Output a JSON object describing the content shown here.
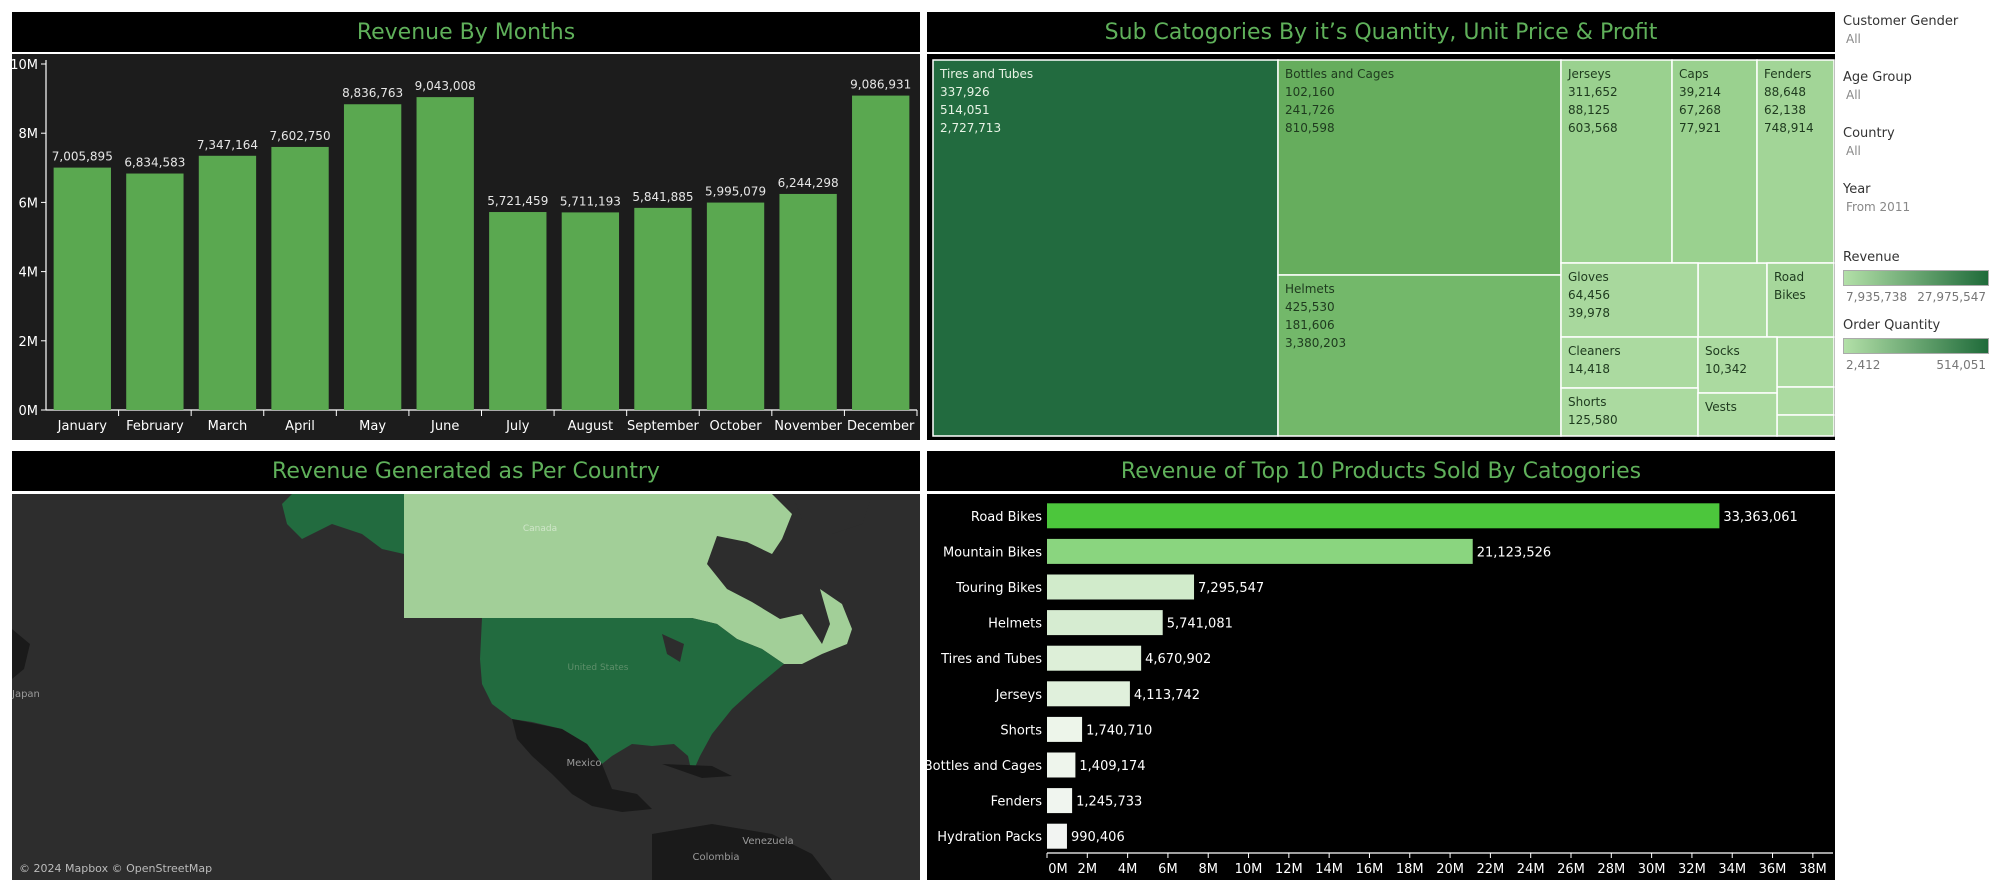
{
  "panels": {
    "months_title": "Revenue By Months",
    "treemap_title": "Sub Catogories By it’s Quantity, Unit Price & Profit",
    "map_title": "Revenue Generated as Per Country",
    "top10_title": "Revenue of Top 10 Products Sold By Catogories"
  },
  "filters": {
    "gender_label": "Customer Gender",
    "gender_value": "All",
    "age_label": "Age Group",
    "age_value": "All",
    "country_label": "Country",
    "country_value": "All",
    "year_label": "Year",
    "year_value": "From 2011",
    "revenue_legend_label": "Revenue",
    "revenue_min": "7,935,738",
    "revenue_max": "27,975,547",
    "qty_legend_label": "Order Quantity",
    "qty_min": "2,412",
    "qty_max": "514,051"
  },
  "map": {
    "attribution": "© 2024 Mapbox © OpenStreetMap",
    "labels": [
      "Canada",
      "United States",
      "Mexico",
      "Japan",
      "Venezuela",
      "Colombia"
    ]
  },
  "chart_data": [
    {
      "type": "bar",
      "title": "Revenue By Months",
      "categories": [
        "January",
        "February",
        "March",
        "April",
        "May",
        "June",
        "July",
        "August",
        "September",
        "October",
        "November",
        "December"
      ],
      "values": [
        7005895,
        6834583,
        7347164,
        7602750,
        8836763,
        9043008,
        5721459,
        5711193,
        5841885,
        5995079,
        6244298,
        9086931
      ],
      "value_labels": [
        "7,005,895",
        "6,834,583",
        "7,347,164",
        "7,602,750",
        "8,836,763",
        "9,043,008",
        "5,721,459",
        "5,711,193",
        "5,841,885",
        "5,995,079",
        "6,244,298",
        "9,086,931"
      ],
      "ylim": [
        0,
        10000000
      ],
      "yticks": [
        "0M",
        "2M",
        "4M",
        "6M",
        "8M",
        "10M"
      ],
      "color": "#5aa850"
    },
    {
      "type": "treemap",
      "title": "Sub Catogories By it’s Quantity, Unit Price & Profit",
      "nodes": [
        {
          "name": "Tires and Tubes",
          "lines": [
            "337,926",
            "514,051",
            "2,727,713"
          ],
          "color": "#226b3f"
        },
        {
          "name": "Bottles and Cages",
          "lines": [
            "102,160",
            "241,726",
            "810,598"
          ],
          "color": "#66ad5d"
        },
        {
          "name": "Helmets",
          "lines": [
            "425,530",
            "181,606",
            "3,380,203"
          ],
          "color": "#73b86a"
        },
        {
          "name": "Jerseys",
          "lines": [
            "311,652",
            "88,125",
            "603,568"
          ],
          "color": "#9ad18f"
        },
        {
          "name": "Caps",
          "lines": [
            "39,214",
            "67,268",
            "77,921"
          ],
          "color": "#9ad18f"
        },
        {
          "name": "Fenders",
          "lines": [
            "88,648",
            "62,138",
            "748,914"
          ],
          "color": "#a2d597"
        },
        {
          "name": "Gloves",
          "lines": [
            "64,456",
            "39,978"
          ],
          "color": "#a8d89d"
        },
        {
          "name": "Road Bikes",
          "lines": [],
          "color": "#a6d79b"
        },
        {
          "name": "Cleaners",
          "lines": [
            "14,418"
          ],
          "color": "#abdaa0"
        },
        {
          "name": "Socks",
          "lines": [
            "10,342"
          ],
          "color": "#abdaa0"
        },
        {
          "name": "Shorts",
          "lines": [
            "125,580"
          ],
          "color": "#abdaa0"
        },
        {
          "name": "Vests",
          "lines": [],
          "color": "#abdaa0"
        }
      ]
    },
    {
      "type": "bar",
      "orientation": "horizontal",
      "title": "Revenue of Top 10 Products Sold By Catogories",
      "categories": [
        "Road Bikes",
        "Mountain Bikes",
        "Touring Bikes",
        "Helmets",
        "Tires and Tubes",
        "Jerseys",
        "Shorts",
        "Bottles and Cages",
        "Fenders",
        "Hydration Packs"
      ],
      "values": [
        33363061,
        21123526,
        7295547,
        5741081,
        4670902,
        4113742,
        1740710,
        1409174,
        1245733,
        990406
      ],
      "value_labels": [
        "33,363,061",
        "21,123,526",
        "7,295,547",
        "5,741,081",
        "4,670,902",
        "4,113,742",
        "1,740,710",
        "1,409,174",
        "1,245,733",
        "990,406"
      ],
      "colors": [
        "#4cc63c",
        "#8ad57f",
        "#d1ebcb",
        "#d6ecd1",
        "#ddefd8",
        "#e0f0dc",
        "#edf5ea",
        "#eef5ec",
        "#f0f5ef",
        "#f2f4f2"
      ],
      "xlim": [
        0,
        39000000
      ],
      "xticks": [
        "0M",
        "2M",
        "4M",
        "6M",
        "8M",
        "10M",
        "12M",
        "14M",
        "16M",
        "18M",
        "20M",
        "22M",
        "24M",
        "26M",
        "28M",
        "30M",
        "32M",
        "34M",
        "36M",
        "38M"
      ]
    }
  ]
}
